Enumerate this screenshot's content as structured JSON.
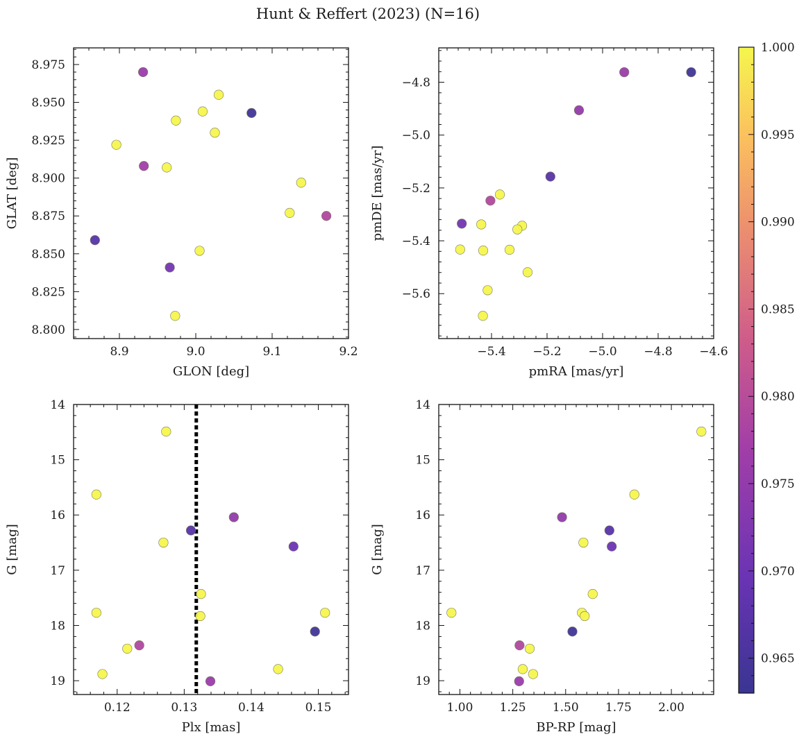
{
  "figure": {
    "title": "Hunt & Reffert (2023) (N=16)",
    "colorbar": {
      "min": 0.963,
      "max": 1.0,
      "ticks": [
        0.965,
        0.97,
        0.975,
        0.98,
        0.985,
        0.99,
        0.995,
        1.0
      ],
      "tick_labels": [
        "0.965",
        "0.970",
        "0.975",
        "0.980",
        "0.985",
        "0.990",
        "0.995",
        "1.000"
      ]
    }
  },
  "chart_data": [
    {
      "type": "scatter",
      "title": "",
      "xlabel": "GLON [deg]",
      "ylabel": "GLAT [deg]",
      "xlim": [
        8.84,
        9.2
      ],
      "ylim": [
        8.794,
        8.986
      ],
      "xticks": [
        8.9,
        9.0,
        9.1,
        9.2
      ],
      "xtick_labels": [
        "8.9",
        "9.0",
        "9.1",
        "9.2"
      ],
      "yticks": [
        8.8,
        8.825,
        8.85,
        8.875,
        8.9,
        8.925,
        8.95,
        8.975
      ],
      "ytick_labels": [
        "8.800",
        "8.825",
        "8.850",
        "8.875",
        "8.900",
        "8.925",
        "8.950",
        "8.975"
      ],
      "points": [
        {
          "x": 8.931,
          "y": 8.97,
          "c": 0.976
        },
        {
          "x": 9.03,
          "y": 8.955,
          "c": 1.0
        },
        {
          "x": 9.009,
          "y": 8.944,
          "c": 1.0
        },
        {
          "x": 9.073,
          "y": 8.943,
          "c": 0.964
        },
        {
          "x": 8.974,
          "y": 8.938,
          "c": 1.0
        },
        {
          "x": 9.025,
          "y": 8.93,
          "c": 1.0
        },
        {
          "x": 8.896,
          "y": 8.922,
          "c": 1.0
        },
        {
          "x": 8.932,
          "y": 8.908,
          "c": 0.977
        },
        {
          "x": 8.962,
          "y": 8.907,
          "c": 1.0
        },
        {
          "x": 9.138,
          "y": 8.897,
          "c": 1.0
        },
        {
          "x": 9.123,
          "y": 8.877,
          "c": 1.0
        },
        {
          "x": 9.171,
          "y": 8.875,
          "c": 0.979
        },
        {
          "x": 8.868,
          "y": 8.859,
          "c": 0.967
        },
        {
          "x": 9.005,
          "y": 8.852,
          "c": 1.0
        },
        {
          "x": 8.966,
          "y": 8.841,
          "c": 0.971
        },
        {
          "x": 8.973,
          "y": 8.809,
          "c": 1.0
        }
      ]
    },
    {
      "type": "scatter",
      "title": "",
      "xlabel": "pmRA [mas/yr]",
      "ylabel": "pmDE [mas/yr]",
      "xlim": [
        -5.59,
        -4.6
      ],
      "ylim": [
        -5.77,
        -4.67
      ],
      "xticks": [
        -5.4,
        -5.2,
        -5.0,
        -4.8,
        -4.6
      ],
      "xtick_labels": [
        "−5.4",
        "−5.2",
        "−5.0",
        "−4.8",
        "−4.6"
      ],
      "yticks": [
        -5.6,
        -5.4,
        -5.2,
        -5.0,
        -4.8
      ],
      "ytick_labels": [
        "−5.6",
        "−5.4",
        "−5.2",
        "−5.0",
        "−4.8"
      ],
      "points": [
        {
          "x": -4.922,
          "y": -4.762,
          "c": 0.976
        },
        {
          "x": -4.681,
          "y": -4.762,
          "c": 0.964
        },
        {
          "x": -5.085,
          "y": -4.906,
          "c": 0.975
        },
        {
          "x": -5.188,
          "y": -5.157,
          "c": 0.967
        },
        {
          "x": -5.37,
          "y": -5.225,
          "c": 1.0
        },
        {
          "x": -5.404,
          "y": -5.248,
          "c": 0.979
        },
        {
          "x": -5.507,
          "y": -5.335,
          "c": 0.971
        },
        {
          "x": -5.437,
          "y": -5.338,
          "c": 1.0
        },
        {
          "x": -5.29,
          "y": -5.343,
          "c": 1.0
        },
        {
          "x": -5.307,
          "y": -5.357,
          "c": 1.0
        },
        {
          "x": -5.513,
          "y": -5.433,
          "c": 1.0
        },
        {
          "x": -5.43,
          "y": -5.437,
          "c": 1.0
        },
        {
          "x": -5.335,
          "y": -5.434,
          "c": 1.0
        },
        {
          "x": -5.27,
          "y": -5.519,
          "c": 1.0
        },
        {
          "x": -5.414,
          "y": -5.587,
          "c": 1.0
        },
        {
          "x": -5.431,
          "y": -5.684,
          "c": 1.0
        }
      ]
    },
    {
      "type": "scatter",
      "title": "",
      "xlabel": "Plx [mas]",
      "ylabel": "G [mag]",
      "xlim": [
        0.1135,
        0.1545
      ],
      "ylim": [
        19.25,
        14.0
      ],
      "y_inverted": true,
      "vline": 0.1318,
      "xticks": [
        0.12,
        0.13,
        0.14,
        0.15
      ],
      "xtick_labels": [
        "0.12",
        "0.13",
        "0.14",
        "0.15"
      ],
      "yticks": [
        14,
        15,
        16,
        17,
        18,
        19
      ],
      "ytick_labels": [
        "14",
        "15",
        "16",
        "17",
        "18",
        "19"
      ],
      "points": [
        {
          "x": 0.1273,
          "y": 14.49,
          "c": 1.0
        },
        {
          "x": 0.1169,
          "y": 15.63,
          "c": 1.0
        },
        {
          "x": 0.1374,
          "y": 16.04,
          "c": 0.975
        },
        {
          "x": 0.131,
          "y": 16.28,
          "c": 0.967
        },
        {
          "x": 0.1269,
          "y": 16.5,
          "c": 1.0
        },
        {
          "x": 0.1463,
          "y": 16.57,
          "c": 0.97
        },
        {
          "x": 0.1325,
          "y": 17.43,
          "c": 1.0
        },
        {
          "x": 0.1169,
          "y": 17.77,
          "c": 1.0
        },
        {
          "x": 0.151,
          "y": 17.77,
          "c": 1.0
        },
        {
          "x": 0.1324,
          "y": 17.83,
          "c": 1.0
        },
        {
          "x": 0.1495,
          "y": 18.11,
          "c": 0.964
        },
        {
          "x": 0.1233,
          "y": 18.36,
          "c": 0.979
        },
        {
          "x": 0.1215,
          "y": 18.42,
          "c": 1.0
        },
        {
          "x": 0.144,
          "y": 18.79,
          "c": 1.0
        },
        {
          "x": 0.1178,
          "y": 18.88,
          "c": 1.0
        },
        {
          "x": 0.1339,
          "y": 19.01,
          "c": 0.976
        }
      ]
    },
    {
      "type": "scatter",
      "title": "",
      "xlabel": "BP-RP [mag]",
      "ylabel": "G [mag]",
      "xlim": [
        0.9,
        2.2
      ],
      "ylim": [
        19.25,
        14.0
      ],
      "y_inverted": true,
      "xticks": [
        1.0,
        1.25,
        1.5,
        1.75,
        2.0
      ],
      "xtick_labels": [
        "1.00",
        "1.25",
        "1.50",
        "1.75",
        "2.00"
      ],
      "yticks": [
        14,
        15,
        16,
        17,
        18,
        19
      ],
      "ytick_labels": [
        "14",
        "15",
        "16",
        "17",
        "18",
        "19"
      ],
      "points": [
        {
          "x": 2.142,
          "y": 14.49,
          "c": 1.0
        },
        {
          "x": 1.825,
          "y": 15.63,
          "c": 1.0
        },
        {
          "x": 1.483,
          "y": 16.04,
          "c": 0.975
        },
        {
          "x": 1.707,
          "y": 16.28,
          "c": 0.967
        },
        {
          "x": 1.584,
          "y": 16.5,
          "c": 1.0
        },
        {
          "x": 1.718,
          "y": 16.57,
          "c": 0.97
        },
        {
          "x": 1.628,
          "y": 17.43,
          "c": 1.0
        },
        {
          "x": 0.96,
          "y": 17.77,
          "c": 1.0
        },
        {
          "x": 1.577,
          "y": 17.77,
          "c": 1.0
        },
        {
          "x": 1.59,
          "y": 17.83,
          "c": 1.0
        },
        {
          "x": 1.532,
          "y": 18.11,
          "c": 0.964
        },
        {
          "x": 1.282,
          "y": 18.36,
          "c": 0.979
        },
        {
          "x": 1.33,
          "y": 18.42,
          "c": 1.0
        },
        {
          "x": 1.297,
          "y": 18.79,
          "c": 1.0
        },
        {
          "x": 1.346,
          "y": 18.88,
          "c": 1.0
        },
        {
          "x": 1.28,
          "y": 19.01,
          "c": 0.976
        }
      ]
    }
  ]
}
